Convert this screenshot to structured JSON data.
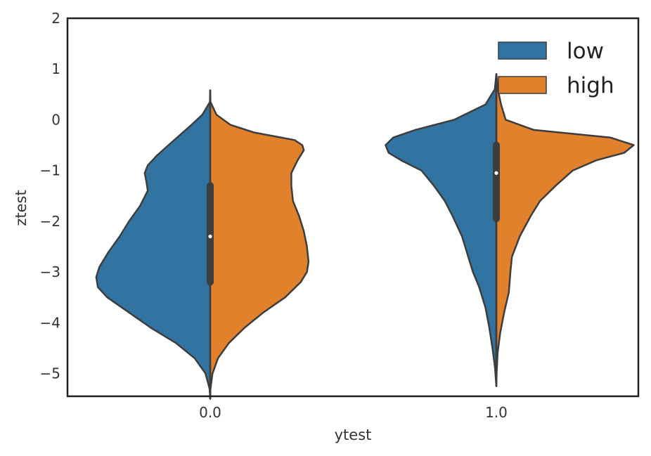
{
  "chart_data": {
    "type": "violin",
    "split": true,
    "xlabel": "ytest",
    "ylabel": "ztest",
    "ylim": [
      -5.45,
      2
    ],
    "yticks": [
      2,
      1,
      0,
      -1,
      -2,
      -3,
      -4,
      -5
    ],
    "ytick_labels": [
      "2",
      "1",
      "0",
      "−1",
      "−2",
      "−3",
      "−4",
      "−5"
    ],
    "categories": [
      "0.0",
      "1.0"
    ],
    "grid": false,
    "legend_position": "top-right",
    "series": [
      {
        "name": "low",
        "color": "#3274a1"
      },
      {
        "name": "high",
        "color": "#e1812c"
      }
    ],
    "violins": [
      {
        "category": "0.0",
        "y_min": -5.5,
        "y_max": 0.58,
        "median": -2.3,
        "q1": -3.2,
        "q3": -1.3,
        "low_profile": [
          [
            0.58,
            0
          ],
          [
            0.35,
            0.002
          ],
          [
            0.1,
            0.05
          ],
          [
            -0.1,
            0.12
          ],
          [
            -0.4,
            0.23
          ],
          [
            -0.7,
            0.34
          ],
          [
            -0.9,
            0.4
          ],
          [
            -1.05,
            0.42
          ],
          [
            -1.2,
            0.41
          ],
          [
            -1.4,
            0.4
          ],
          [
            -1.7,
            0.45
          ],
          [
            -2.0,
            0.52
          ],
          [
            -2.3,
            0.58
          ],
          [
            -2.6,
            0.65
          ],
          [
            -2.9,
            0.71
          ],
          [
            -3.1,
            0.73
          ],
          [
            -3.3,
            0.72
          ],
          [
            -3.5,
            0.66
          ],
          [
            -3.8,
            0.52
          ],
          [
            -4.1,
            0.38
          ],
          [
            -4.4,
            0.22
          ],
          [
            -4.7,
            0.1
          ],
          [
            -5.0,
            0.03
          ],
          [
            -5.3,
            0.004
          ],
          [
            -5.5,
            0
          ]
        ],
        "high_profile": [
          [
            0.58,
            0
          ],
          [
            0.35,
            0.002
          ],
          [
            0.1,
            0.04
          ],
          [
            -0.1,
            0.13
          ],
          [
            -0.25,
            0.28
          ],
          [
            -0.4,
            0.54
          ],
          [
            -0.5,
            0.59
          ],
          [
            -0.6,
            0.6
          ],
          [
            -0.8,
            0.56
          ],
          [
            -1.05,
            0.52
          ],
          [
            -1.3,
            0.52
          ],
          [
            -1.6,
            0.53
          ],
          [
            -1.9,
            0.57
          ],
          [
            -2.2,
            0.6
          ],
          [
            -2.5,
            0.62
          ],
          [
            -2.8,
            0.63
          ],
          [
            -3.0,
            0.62
          ],
          [
            -3.2,
            0.58
          ],
          [
            -3.5,
            0.48
          ],
          [
            -3.8,
            0.34
          ],
          [
            -4.1,
            0.22
          ],
          [
            -4.4,
            0.12
          ],
          [
            -4.7,
            0.05
          ],
          [
            -5.0,
            0.015
          ],
          [
            -5.3,
            0.002
          ],
          [
            -5.5,
            0
          ]
        ]
      },
      {
        "category": "1.0",
        "y_min": -5.25,
        "y_max": 0.9,
        "median": -1.05,
        "q1": -1.95,
        "q3": -0.5,
        "low_profile": [
          [
            0.9,
            0
          ],
          [
            0.6,
            0.01
          ],
          [
            0.3,
            0.07
          ],
          [
            0.0,
            0.27
          ],
          [
            -0.2,
            0.52
          ],
          [
            -0.35,
            0.66
          ],
          [
            -0.5,
            0.71
          ],
          [
            -0.65,
            0.69
          ],
          [
            -0.8,
            0.61
          ],
          [
            -1.0,
            0.48
          ],
          [
            -1.3,
            0.4
          ],
          [
            -1.6,
            0.33
          ],
          [
            -1.9,
            0.28
          ],
          [
            -2.3,
            0.22
          ],
          [
            -2.7,
            0.18
          ],
          [
            -3.0,
            0.15
          ],
          [
            -3.3,
            0.11
          ],
          [
            -3.7,
            0.07
          ],
          [
            -4.1,
            0.045
          ],
          [
            -4.5,
            0.025
          ],
          [
            -4.9,
            0.008
          ],
          [
            -5.25,
            0
          ]
        ],
        "high_profile": [
          [
            0.9,
            0
          ],
          [
            0.6,
            0.01
          ],
          [
            0.3,
            0.03
          ],
          [
            0.0,
            0.06
          ],
          [
            -0.2,
            0.24
          ],
          [
            -0.35,
            0.73
          ],
          [
            -0.5,
            0.88
          ],
          [
            -0.65,
            0.82
          ],
          [
            -0.8,
            0.64
          ],
          [
            -1.0,
            0.49
          ],
          [
            -1.3,
            0.38
          ],
          [
            -1.6,
            0.28
          ],
          [
            -1.9,
            0.22
          ],
          [
            -2.3,
            0.15
          ],
          [
            -2.7,
            0.1
          ],
          [
            -3.0,
            0.09
          ],
          [
            -3.4,
            0.08
          ],
          [
            -3.8,
            0.05
          ],
          [
            -4.2,
            0.025
          ],
          [
            -4.6,
            0.008
          ],
          [
            -5.0,
            0.002
          ],
          [
            -5.25,
            0
          ]
        ]
      }
    ]
  }
}
